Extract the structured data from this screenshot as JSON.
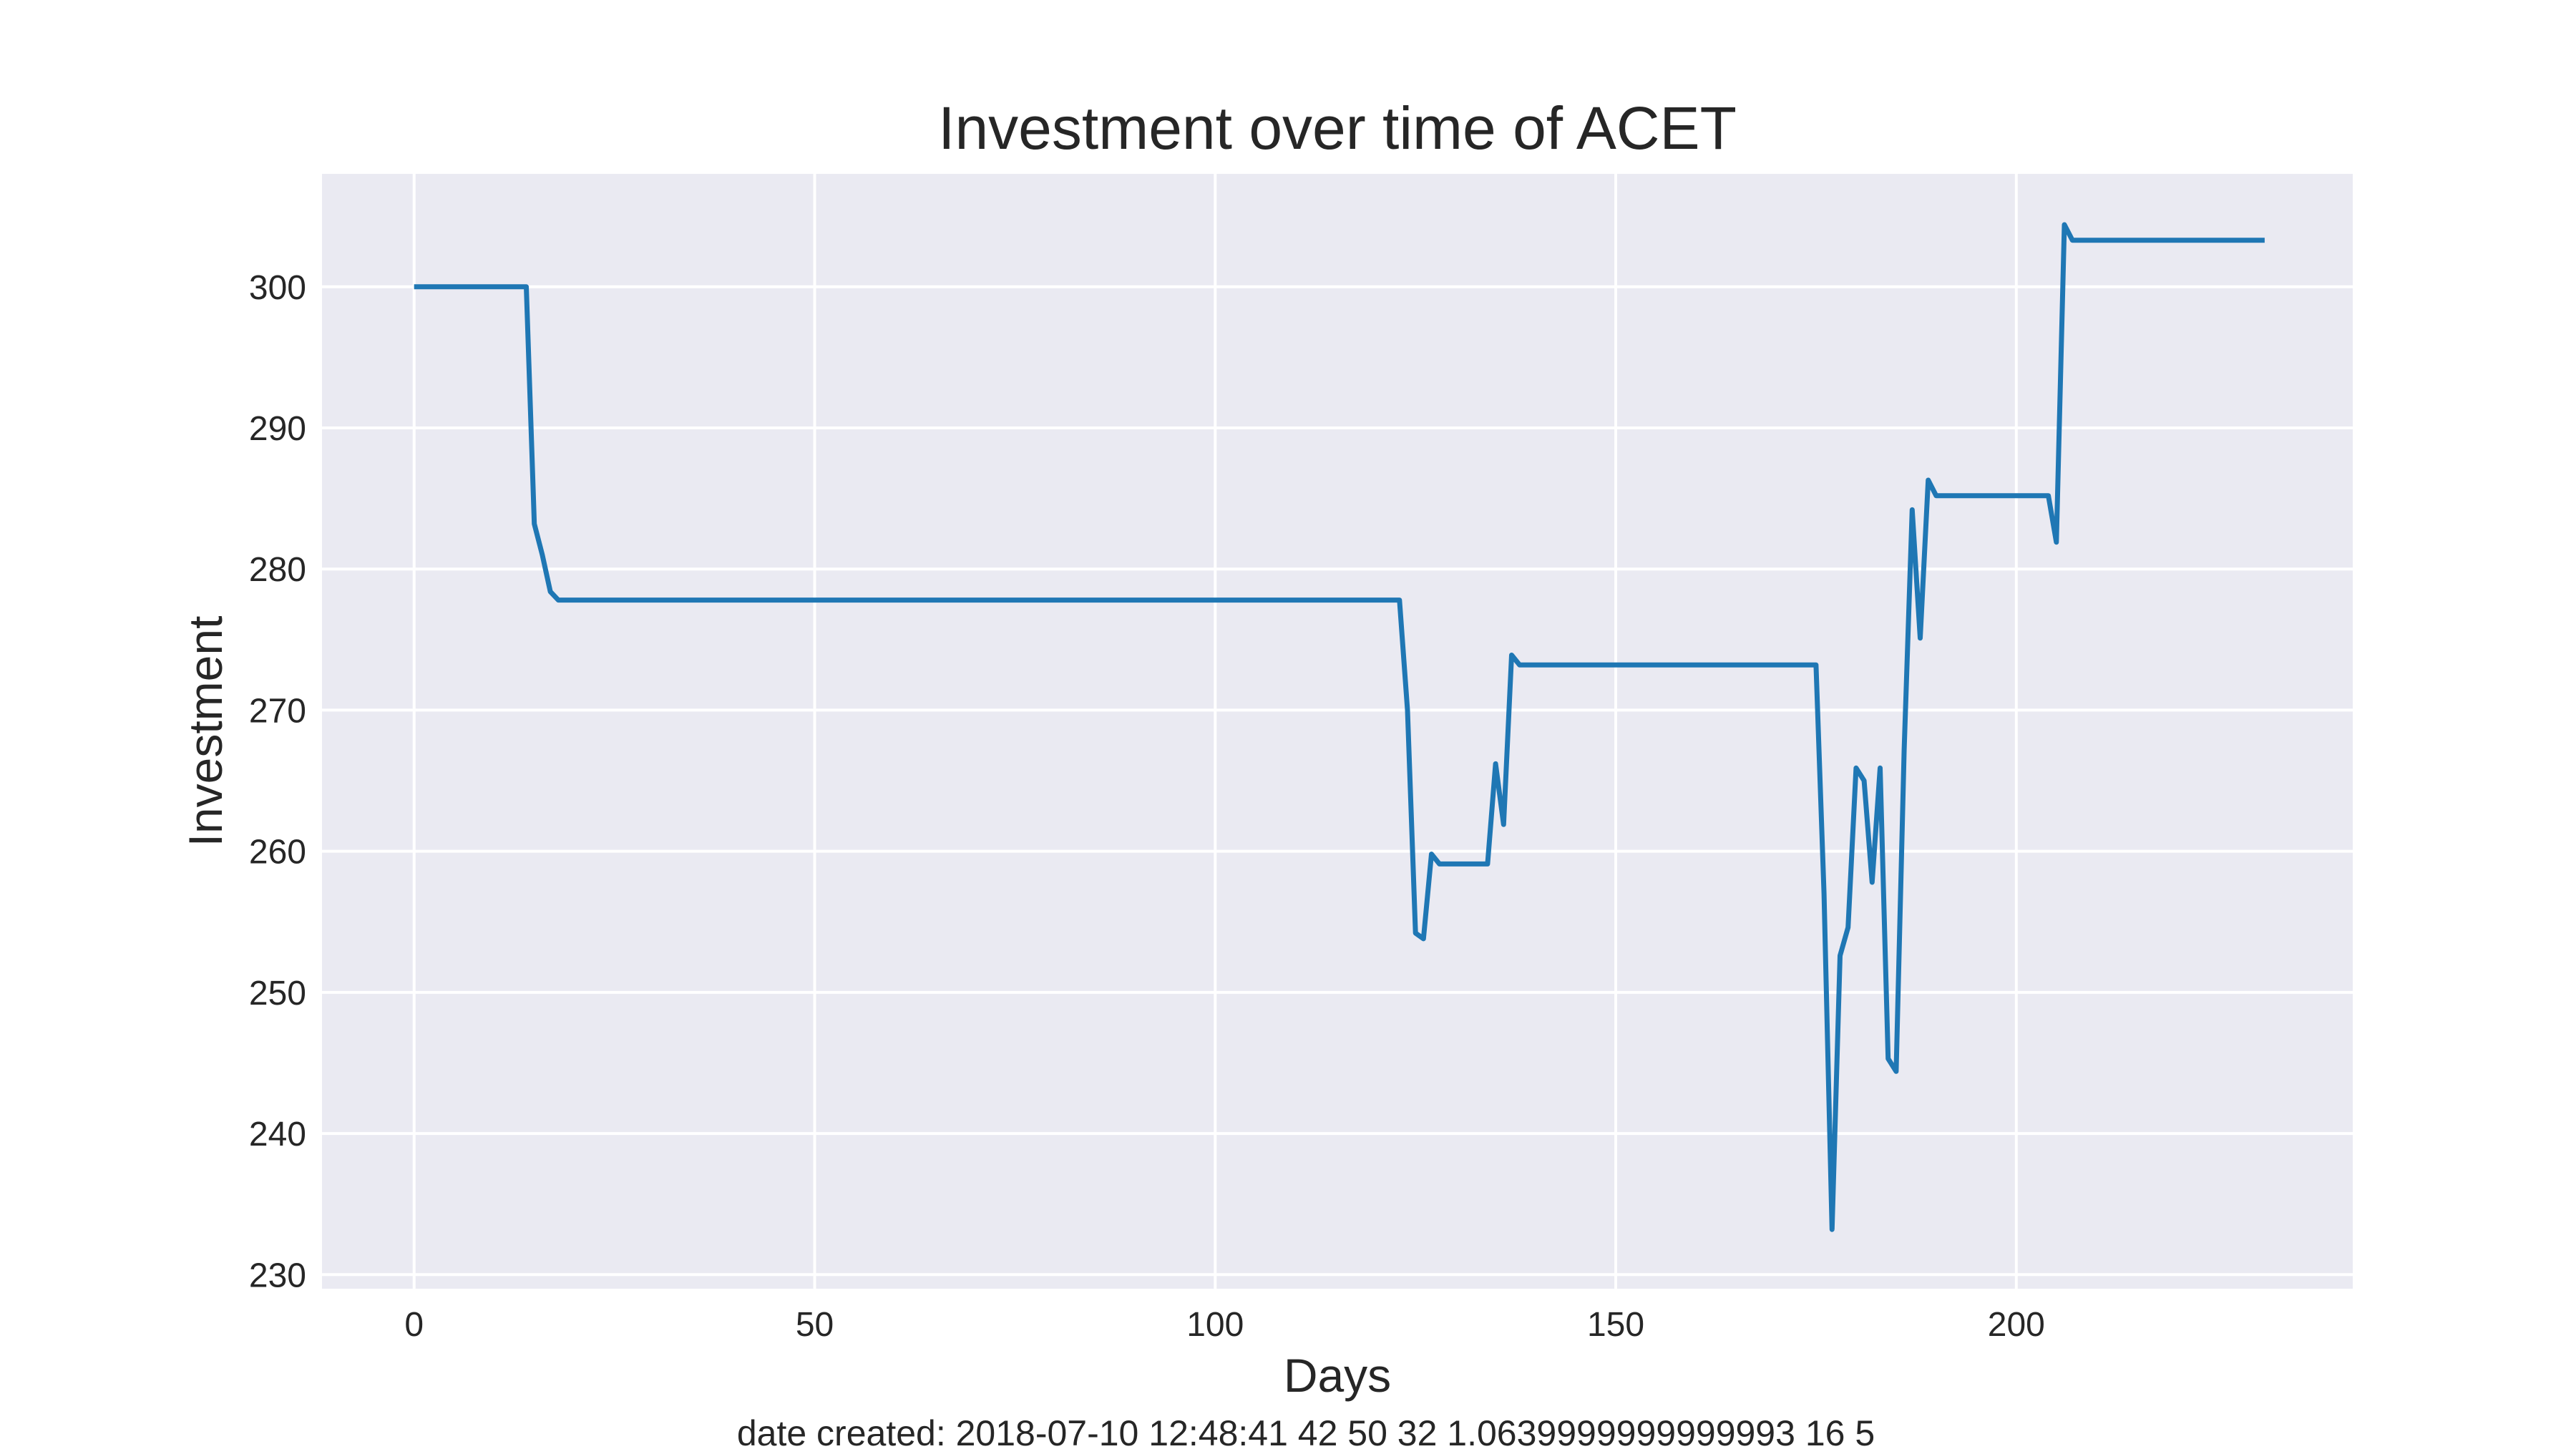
{
  "chart_data": {
    "type": "line",
    "title": "Investment over time of ACET",
    "xlabel": "Days",
    "ylabel": "Investment",
    "xlim": [
      -11.5,
      242
    ],
    "ylim": [
      229,
      308
    ],
    "x_ticks": [
      0,
      50,
      100,
      150,
      200
    ],
    "y_ticks": [
      230,
      240,
      250,
      260,
      270,
      280,
      290,
      300
    ],
    "grid": true,
    "legend": "none",
    "colors": {
      "background": "#eaeaf2",
      "grid": "#ffffff",
      "line": "#1f77b4"
    },
    "series": [
      {
        "points": [
          [
            0,
            300
          ],
          [
            14,
            300
          ],
          [
            15,
            283.2
          ],
          [
            16,
            281
          ],
          [
            17,
            278.4
          ],
          [
            18,
            277.8
          ],
          [
            123,
            277.8
          ],
          [
            124,
            270
          ],
          [
            125,
            254.2
          ],
          [
            126,
            253.8
          ],
          [
            127,
            259.8
          ],
          [
            128,
            259.1
          ],
          [
            134,
            259.1
          ],
          [
            135,
            266.2
          ],
          [
            136,
            261.9
          ],
          [
            137,
            273.9
          ],
          [
            138,
            273.2
          ],
          [
            175,
            273.2
          ],
          [
            176,
            257
          ],
          [
            177,
            233.2
          ],
          [
            178,
            252.6
          ],
          [
            179,
            254.6
          ],
          [
            180,
            265.9
          ],
          [
            181,
            265
          ],
          [
            182,
            257.8
          ],
          [
            183,
            265.9
          ],
          [
            184,
            245.3
          ],
          [
            185,
            244.4
          ],
          [
            186,
            267.2
          ],
          [
            187,
            284.2
          ],
          [
            188,
            275.1
          ],
          [
            189,
            286.3
          ],
          [
            190,
            285.2
          ],
          [
            204,
            285.2
          ],
          [
            205,
            281.9
          ],
          [
            206,
            304.4
          ],
          [
            207,
            303.3
          ],
          [
            231,
            303.3
          ]
        ]
      }
    ]
  },
  "footer": "date created: 2018-07-10 12:48:41 42 50 32 1.0639999999999993 16 5"
}
